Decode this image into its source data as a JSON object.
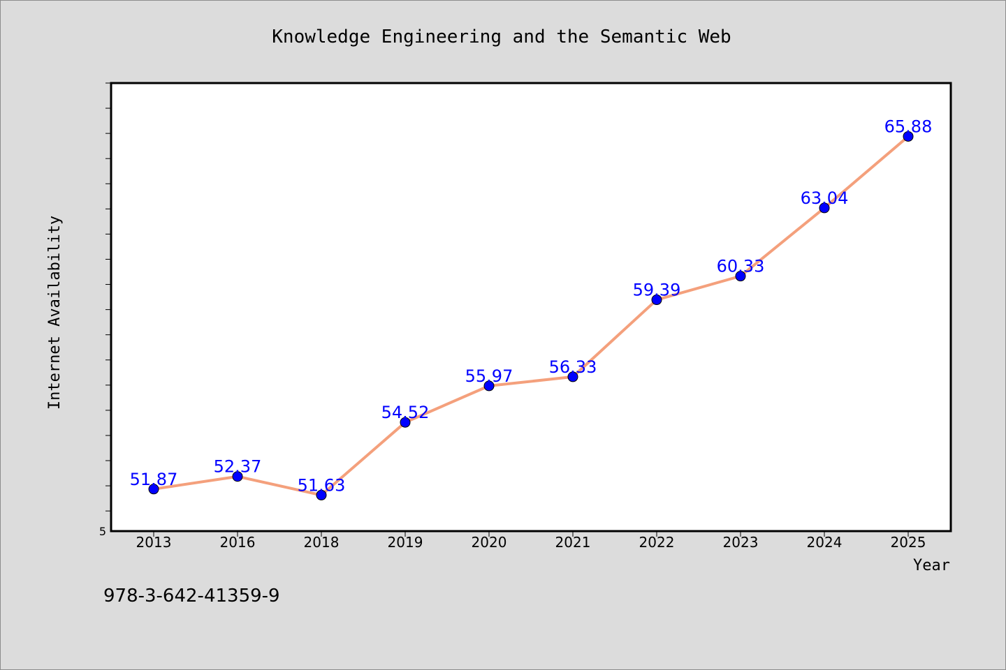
{
  "chart_data": {
    "type": "line",
    "title": "Knowledge Engineering and the Semantic Web",
    "xlabel": "Year",
    "ylabel": "Internet Availability",
    "categories": [
      "2013",
      "2016",
      "2018",
      "2019",
      "2020",
      "2021",
      "2022",
      "2023",
      "2024",
      "2025"
    ],
    "values": [
      51.87,
      52.37,
      51.63,
      54.52,
      55.97,
      56.33,
      59.39,
      60.33,
      63.04,
      65.88
    ],
    "data_labels": [
      "51.87",
      "52.37",
      "51.63",
      "54.52",
      "55.97",
      "56.33",
      "59.39",
      "60.33",
      "63.04",
      "65.88"
    ],
    "ylim": [
      50.2,
      68.0
    ],
    "y_tick_label": "5",
    "y_minor_step": 1.0,
    "grid": false,
    "line_color": "#f4a07c",
    "marker_color": "#0000ff",
    "label_color": "#0000ff",
    "background": "#dcdcdc",
    "plot_background": "#ffffff"
  },
  "footer_text": "978-3-642-41359-9"
}
